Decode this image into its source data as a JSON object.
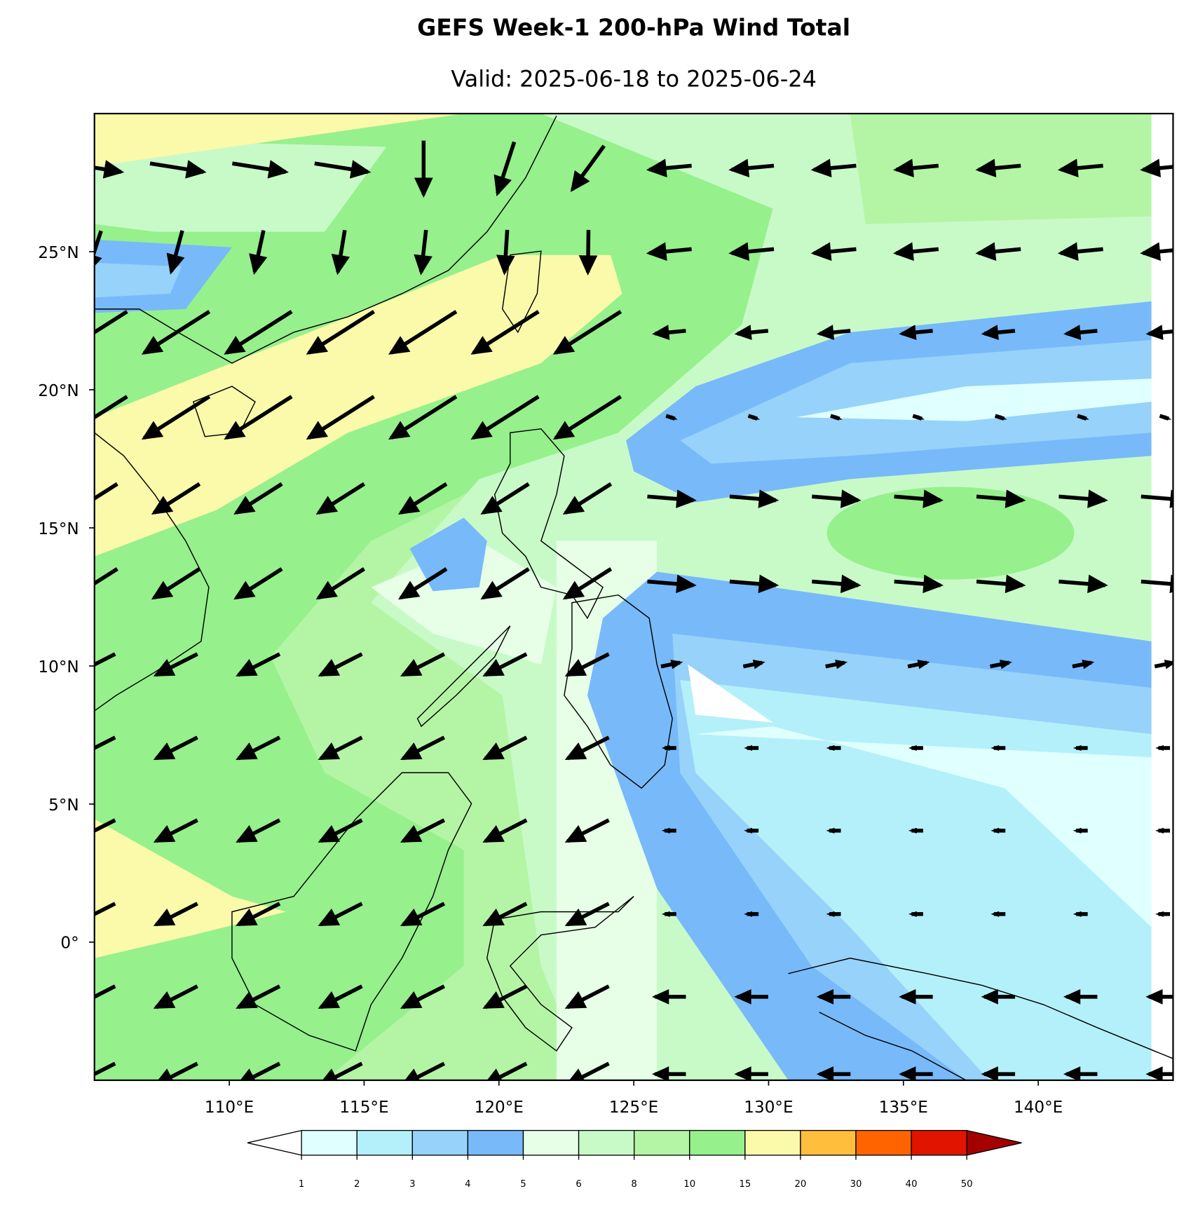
{
  "map": {
    "title": "GEFS Week-1 200-hPa Wind Total",
    "subtitle": "Valid: 2025-06-18 to 2025-06-24",
    "lon_range": [
      105,
      145
    ],
    "lat_range": [
      -5,
      30
    ],
    "xticks": [
      {
        "value": 110,
        "label": "110°E"
      },
      {
        "value": 115,
        "label": "115°E"
      },
      {
        "value": 120,
        "label": "120°E"
      },
      {
        "value": 125,
        "label": "125°E"
      },
      {
        "value": 130,
        "label": "130°E"
      },
      {
        "value": 135,
        "label": "135°E"
      },
      {
        "value": 140,
        "label": "140°E"
      }
    ],
    "yticks": [
      {
        "value": 0,
        "label": "0°"
      },
      {
        "value": 5,
        "label": "5°N"
      },
      {
        "value": 10,
        "label": "10°N"
      },
      {
        "value": 15,
        "label": "15°N"
      },
      {
        "value": 20,
        "label": "20°N"
      },
      {
        "value": 25,
        "label": "25°N"
      }
    ]
  },
  "colorbar": {
    "levels": [
      1,
      2,
      3,
      4,
      5,
      6,
      8,
      10,
      15,
      20,
      30,
      40,
      50
    ],
    "colors": [
      "#e0ffff",
      "#b4f0fa",
      "#96d2fa",
      "#78b9fa",
      "#e6ffe6",
      "#c8fac8",
      "#b4f5a5",
      "#96f08c",
      "#fafaaa",
      "#ffbe3c",
      "#ff6400",
      "#e11400"
    ],
    "under": "#ffffff",
    "over": "#a50000"
  }
}
